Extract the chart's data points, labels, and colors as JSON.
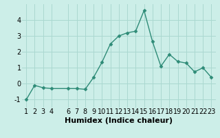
{
  "x": [
    1,
    2,
    3,
    4,
    6,
    7,
    8,
    9,
    10,
    11,
    12,
    13,
    14,
    15,
    16,
    17,
    18,
    19,
    20,
    21,
    22,
    23
  ],
  "y": [
    -1.0,
    -0.1,
    -0.25,
    -0.3,
    -0.3,
    -0.3,
    -0.35,
    0.4,
    1.35,
    2.5,
    3.0,
    3.2,
    3.3,
    4.6,
    2.65,
    1.1,
    1.85,
    1.4,
    1.3,
    0.75,
    1.0,
    0.4
  ],
  "color": "#2e8b77",
  "bg_color": "#cceee8",
  "grid_color": "#aad8d0",
  "xlabel": "Humidex (Indice chaleur)",
  "ylim": [
    -1.5,
    5.0
  ],
  "xlim": [
    0.5,
    23.5
  ],
  "yticks": [
    -1,
    0,
    1,
    2,
    3,
    4
  ],
  "xticks": [
    1,
    2,
    3,
    4,
    6,
    7,
    8,
    9,
    10,
    11,
    12,
    13,
    14,
    15,
    16,
    17,
    18,
    19,
    20,
    21,
    22,
    23
  ],
  "xlabel_fontsize": 8,
  "tick_fontsize": 7,
  "marker": "D",
  "markersize": 2.5,
  "linewidth": 1.0
}
